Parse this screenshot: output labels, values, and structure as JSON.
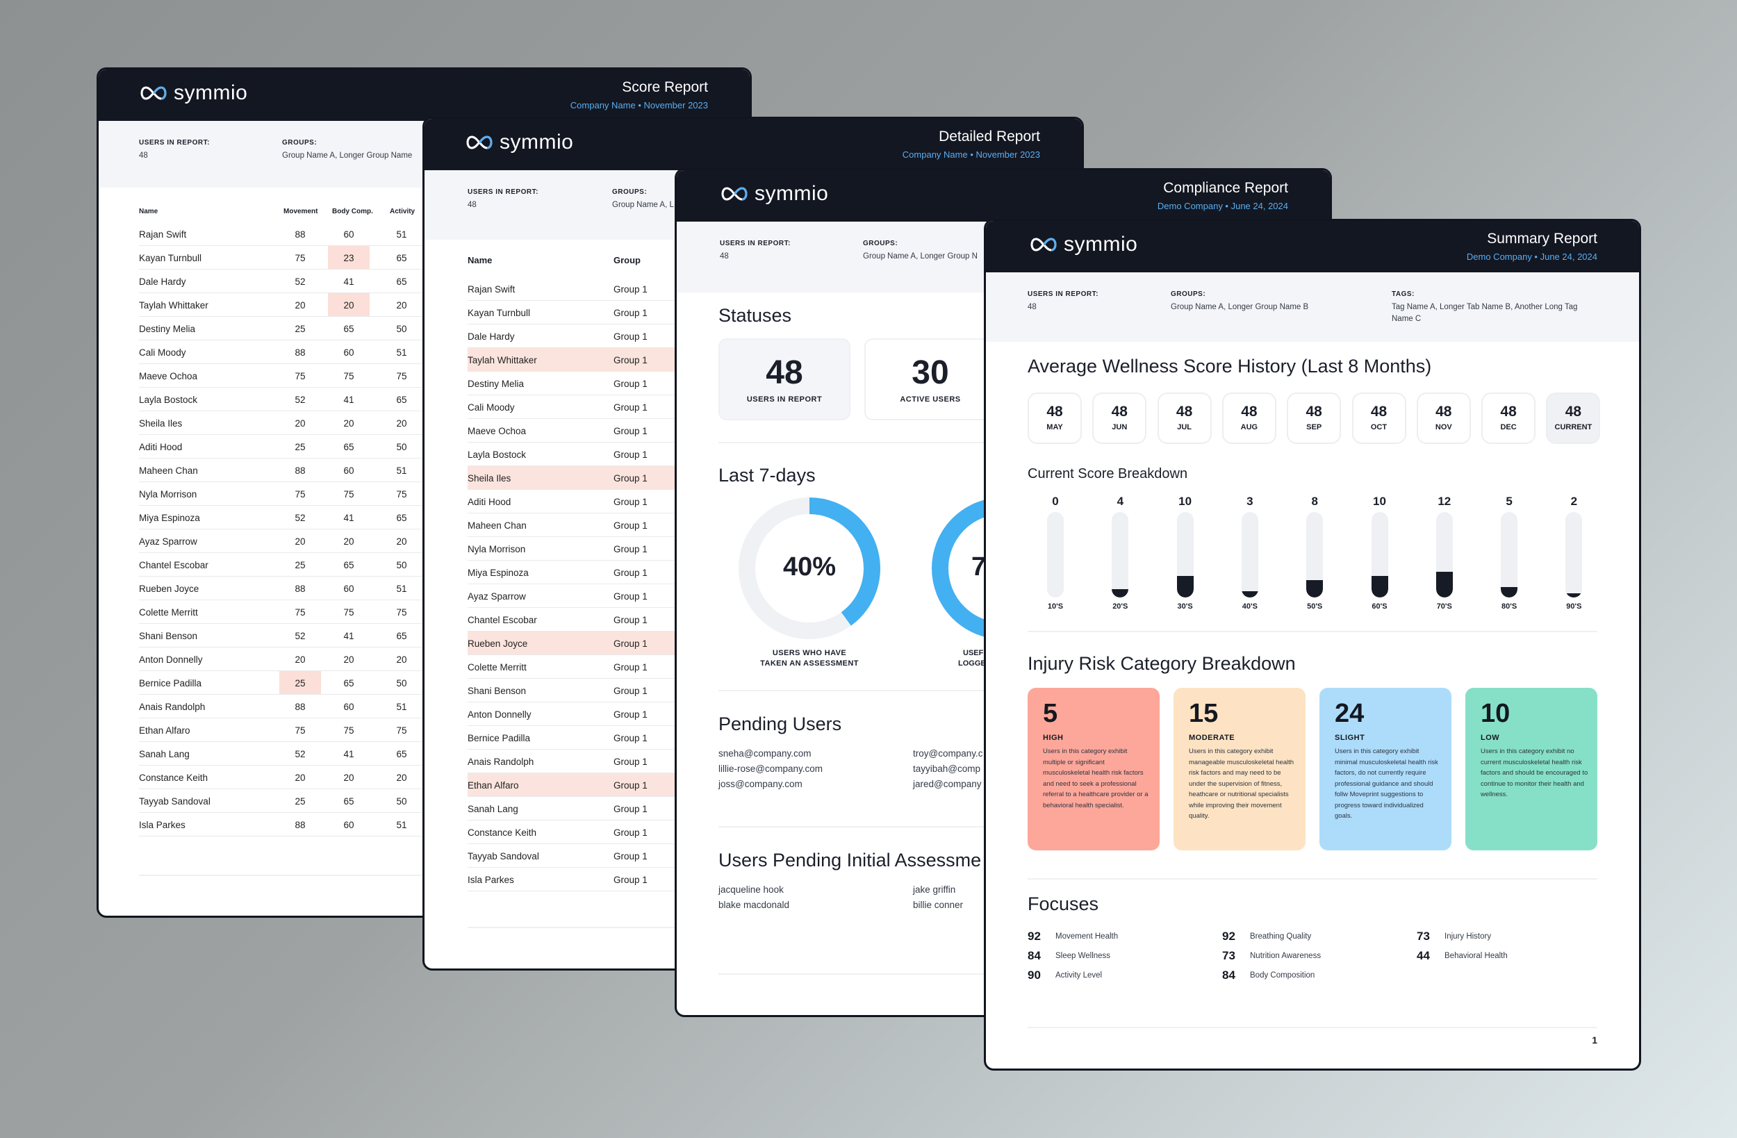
{
  "brand": {
    "name": "symmio",
    "accent": "#5aaef0",
    "header_bg": "#131722"
  },
  "score_report": {
    "title": "Score Report",
    "subtitle": "Company Name  •  November 2023",
    "users_label": "USERS IN REPORT:",
    "users_value": "48",
    "groups_label": "GROUPS:",
    "groups_value": "Group Name A, Longer Group Name",
    "columns": [
      "Name",
      "Movement",
      "Body Comp.",
      "Activity"
    ],
    "rows": [
      [
        "Rajan Swift",
        "88",
        "60",
        "51"
      ],
      [
        "Kayan Turnbull",
        "75",
        "23",
        "65"
      ],
      [
        "Dale Hardy",
        "52",
        "41",
        "65"
      ],
      [
        "Taylah Whittaker",
        "20",
        "20",
        "20"
      ],
      [
        "Destiny Melia",
        "25",
        "65",
        "50"
      ],
      [
        "Cali Moody",
        "88",
        "60",
        "51"
      ],
      [
        "Maeve Ochoa",
        "75",
        "75",
        "75"
      ],
      [
        "Layla Bostock",
        "52",
        "41",
        "65"
      ],
      [
        "Sheila Iles",
        "20",
        "20",
        "20"
      ],
      [
        "Aditi Hood",
        "25",
        "65",
        "50"
      ],
      [
        "Maheen Chan",
        "88",
        "60",
        "51"
      ],
      [
        "Nyla Morrison",
        "75",
        "75",
        "75"
      ],
      [
        "Miya Espinoza",
        "52",
        "41",
        "65"
      ],
      [
        "Ayaz Sparrow",
        "20",
        "20",
        "20"
      ],
      [
        "Chantel Escobar",
        "25",
        "65",
        "50"
      ],
      [
        "Rueben Joyce",
        "88",
        "60",
        "51"
      ],
      [
        "Colette Merritt",
        "75",
        "75",
        "75"
      ],
      [
        "Shani Benson",
        "52",
        "41",
        "65"
      ],
      [
        "Anton Donnelly",
        "20",
        "20",
        "20"
      ],
      [
        "Bernice Padilla",
        "25",
        "65",
        "50"
      ],
      [
        "Anais Randolph",
        "88",
        "60",
        "51"
      ],
      [
        "Ethan Alfaro",
        "75",
        "75",
        "75"
      ],
      [
        "Sanah Lang",
        "52",
        "41",
        "65"
      ],
      [
        "Constance Keith",
        "20",
        "20",
        "20"
      ],
      [
        "Tayyab Sandoval",
        "25",
        "65",
        "50"
      ],
      [
        "Isla Parkes",
        "88",
        "60",
        "51"
      ]
    ]
  },
  "detailed_report": {
    "title": "Detailed Report",
    "subtitle": "Company Name  •  November 2023",
    "users_label": "USERS IN REPORT:",
    "users_value": "48",
    "groups_label": "GROUPS:",
    "groups_value": "Group Name A, L",
    "columns": [
      "Name",
      "Group"
    ],
    "rows": [
      [
        "Rajan Swift",
        "Group 1"
      ],
      [
        "Kayan Turnbull",
        "Group 1"
      ],
      [
        "Dale Hardy",
        "Group 1"
      ],
      [
        "Taylah Whittaker",
        "Group 1"
      ],
      [
        "Destiny Melia",
        "Group 1"
      ],
      [
        "Cali Moody",
        "Group 1"
      ],
      [
        "Maeve Ochoa",
        "Group 1"
      ],
      [
        "Layla Bostock",
        "Group 1"
      ],
      [
        "Sheila Iles",
        "Group 1"
      ],
      [
        "Aditi Hood",
        "Group 1"
      ],
      [
        "Maheen Chan",
        "Group 1"
      ],
      [
        "Nyla Morrison",
        "Group 1"
      ],
      [
        "Miya Espinoza",
        "Group 1"
      ],
      [
        "Ayaz Sparrow",
        "Group 1"
      ],
      [
        "Chantel Escobar",
        "Group 1"
      ],
      [
        "Rueben Joyce",
        "Group 1"
      ],
      [
        "Colette Merritt",
        "Group 1"
      ],
      [
        "Shani Benson",
        "Group 1"
      ],
      [
        "Anton Donnelly",
        "Group 1"
      ],
      [
        "Bernice Padilla",
        "Group 1"
      ],
      [
        "Anais Randolph",
        "Group 1"
      ],
      [
        "Ethan Alfaro",
        "Group 1"
      ],
      [
        "Sanah Lang",
        "Group 1"
      ],
      [
        "Constance Keith",
        "Group 1"
      ],
      [
        "Tayyab Sandoval",
        "Group 1"
      ],
      [
        "Isla Parkes",
        "Group 1"
      ]
    ]
  },
  "compliance_report": {
    "title": "Compliance Report",
    "subtitle": "Demo Company  •  June 24, 2024",
    "users_label": "USERS IN REPORT:",
    "users_value": "48",
    "groups_label": "GROUPS:",
    "groups_value": "Group Name A, Longer Group N",
    "statuses_title": "Statuses",
    "stat1_value": "48",
    "stat1_label": "USERS IN REPORT",
    "stat2_value": "30",
    "stat2_label": "ACTIVE USERS",
    "last7_title": "Last 7-days",
    "donut1_value": "40%",
    "donut1_fraction": 0.4,
    "donut1_label_1": "USERS WHO HAVE",
    "donut1_label_2": "TAKEN AN ASSESSMENT",
    "donut2_value_partial": "7",
    "donut2_label_1": "USEF",
    "donut2_label_2": "LOGGE",
    "pending_title": "Pending Users",
    "pending_left": [
      "sneha@company.com",
      "lillie-rose@company.com",
      "joss@company.com"
    ],
    "pending_right": [
      "troy@company.c",
      "tayyibah@comp",
      "jared@company"
    ],
    "pending_initial_title": "Users Pending Initial Assessme",
    "initial_left": [
      "jacqueline hook",
      "blake macdonald"
    ],
    "initial_right": [
      "jake griffin",
      "billie conner"
    ]
  },
  "summary_report": {
    "title": "Summary Report",
    "subtitle": "Demo Company  •  June 24, 2024",
    "users_label": "USERS IN REPORT:",
    "users_value": "48",
    "groups_label": "GROUPS:",
    "groups_value": "Group Name A, Longer Group Name B",
    "tags_label": "TAGS:",
    "tags_value_1": "Tag Name A, Longer Tab Name B, Another Long Tag",
    "tags_value_2": "Name C",
    "history_title": "Average Wellness Score History (Last 8 Months)",
    "history": [
      {
        "value": "48",
        "month": "MAY"
      },
      {
        "value": "48",
        "month": "JUN"
      },
      {
        "value": "48",
        "month": "JUL"
      },
      {
        "value": "48",
        "month": "AUG"
      },
      {
        "value": "48",
        "month": "SEP"
      },
      {
        "value": "48",
        "month": "OCT"
      },
      {
        "value": "48",
        "month": "NOV"
      },
      {
        "value": "48",
        "month": "DEC"
      },
      {
        "value": "48",
        "month": "CURRENT"
      }
    ],
    "breakdown_title": "Current Score Breakdown",
    "breakdown": [
      {
        "count": "0",
        "range": "10'S",
        "level": 0
      },
      {
        "count": "4",
        "range": "20'S",
        "level": 4
      },
      {
        "count": "10",
        "range": "30'S",
        "level": 10
      },
      {
        "count": "3",
        "range": "40'S",
        "level": 3
      },
      {
        "count": "8",
        "range": "50'S",
        "level": 8
      },
      {
        "count": "10",
        "range": "60'S",
        "level": 10
      },
      {
        "count": "12",
        "range": "70'S",
        "level": 12
      },
      {
        "count": "5",
        "range": "80'S",
        "level": 5
      },
      {
        "count": "2",
        "range": "90'S",
        "level": 2
      }
    ],
    "injury_title": "Injury Risk Category Breakdown",
    "injury": [
      {
        "value": "5",
        "label": "HIGH",
        "color": "#fda79a",
        "desc": "Users in this category exhibit multiple or significant musculoskeletal health risk factors and need to seek a professional referral to a healthcare provider or a behavioral health specialist."
      },
      {
        "value": "15",
        "label": "MODERATE",
        "color": "#fde3c3",
        "desc": "Users in this category exhibit manageable musculoskeletal health risk factors and may need to be under the supervision of fitness, heathcare or nutritional specialists while improving their movement quality."
      },
      {
        "value": "24",
        "label": "SLIGHT",
        "color": "#addcfb",
        "desc": "Users in this category exhibit minimal musculoskeletal health risk factors, do not currently require professional guidance and should follw Moveprint suggestions to progress toward individualized goals."
      },
      {
        "value": "10",
        "label": "LOW",
        "color": "#86e0c7",
        "desc": "Users in this category exhibit no current musculoskeletal health risk factors and should be encouraged to continue to monitor their health and wellness."
      }
    ],
    "focuses_title": "Focuses",
    "focuses": [
      {
        "value": "92",
        "label": "Movement Health"
      },
      {
        "value": "84",
        "label": "Sleep Wellness"
      },
      {
        "value": "90",
        "label": "Activity Level"
      },
      {
        "value": "92",
        "label": "Breathing Quality"
      },
      {
        "value": "73",
        "label": "Nutrition Awareness"
      },
      {
        "value": "84",
        "label": "Body Composition"
      },
      {
        "value": "73",
        "label": "Injury History"
      },
      {
        "value": "44",
        "label": "Behavioral Health"
      }
    ],
    "page_number": "1"
  }
}
